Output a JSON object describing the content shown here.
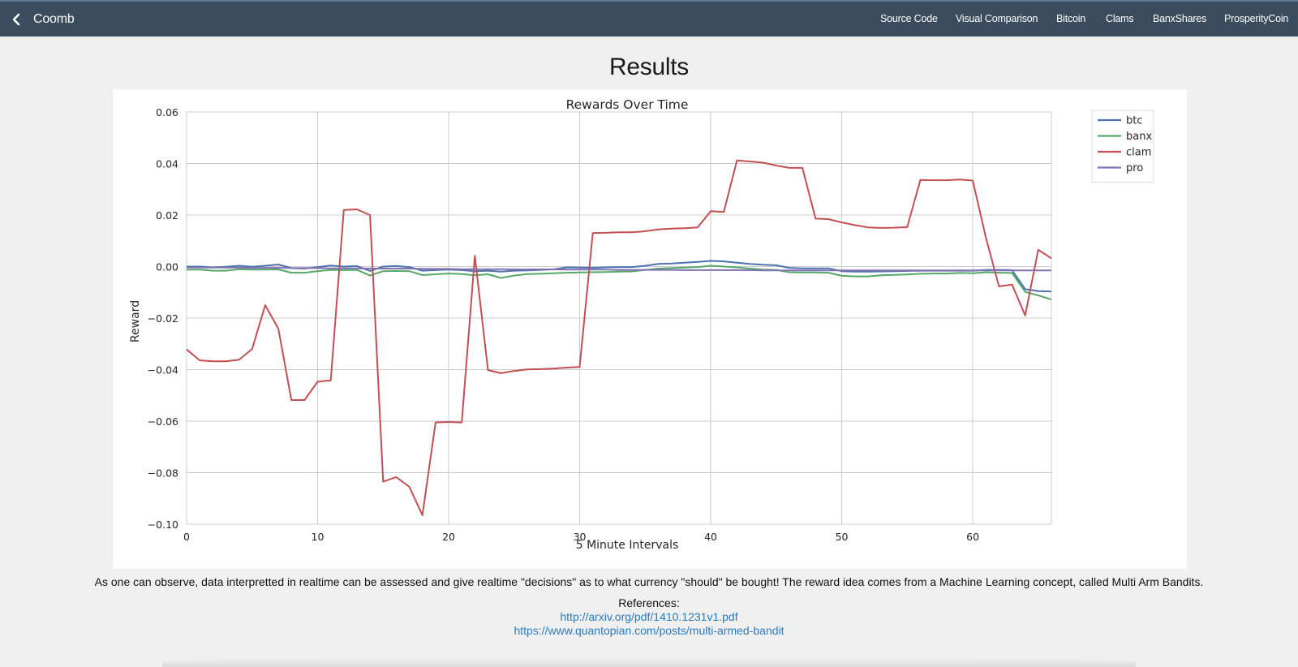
{
  "navbar": {
    "brand": "Coomb",
    "back_icon": "chevron-left-icon",
    "links": [
      "Source Code",
      "Visual Comparison",
      "Bitcoin",
      "Clams",
      "BanxShares",
      "ProsperityCoin"
    ]
  },
  "page": {
    "title": "Results",
    "caption": "As one can observe, data interpretted in realtime can be assessed and give realtime \"decisions\" as to what currency \"should\" be bought! The reward idea comes from a Machine Learning concept, called Multi Arm Bandits.",
    "references_label": "References:",
    "references": [
      "http://arxiv.org/pdf/1410.1231v1.pdf",
      "https://www.quantopian.com/posts/multi-armed-bandit"
    ]
  },
  "chart_data": {
    "type": "line",
    "title": "Rewards Over Time",
    "xlabel": "5 Minute Intervals",
    "ylabel": "Reward",
    "xlim": [
      0,
      66
    ],
    "ylim": [
      -0.1,
      0.06
    ],
    "x_ticks": [
      0,
      10,
      20,
      30,
      40,
      50,
      60
    ],
    "x_tick_labels": [
      "0",
      "10",
      "20",
      "30",
      "40",
      "50",
      "60"
    ],
    "y_ticks": [
      0.06,
      0.04,
      0.02,
      0.0,
      -0.02,
      -0.04,
      -0.06,
      -0.08,
      -0.1
    ],
    "y_tick_labels": [
      "0.06",
      "0.04",
      "0.02",
      "0.00",
      "−0.02",
      "−0.04",
      "−0.06",
      "−0.08",
      "−0.10"
    ],
    "grid": true,
    "legend_position": "outside-top-right",
    "series": [
      {
        "name": "btc",
        "color": "#4c72b0",
        "values": [
          0.0,
          0.0,
          -0.0003,
          -0.0001,
          0.0003,
          -0.0001,
          0.0003,
          0.0008,
          -0.0006,
          -0.0008,
          -0.0002,
          0.0004,
          0.0,
          0.0002,
          -0.0017,
          0.0,
          0.0002,
          -0.0002,
          -0.0016,
          -0.0014,
          -0.0012,
          -0.0014,
          -0.0018,
          -0.0016,
          -0.002,
          -0.0016,
          -0.0015,
          -0.0013,
          -0.0011,
          -0.0003,
          -0.0004,
          -0.0005,
          -0.0003,
          -0.0002,
          -0.0002,
          0.0003,
          0.001,
          0.0012,
          0.0015,
          0.0018,
          0.0022,
          0.002,
          0.0015,
          0.001,
          0.0007,
          0.0005,
          -0.0005,
          -0.0007,
          -0.0007,
          -0.0007,
          -0.0018,
          -0.002,
          -0.002,
          -0.0019,
          -0.0018,
          -0.0017,
          -0.0016,
          -0.0016,
          -0.0016,
          -0.0016,
          -0.0016,
          -0.0013,
          -0.0013,
          -0.0014,
          -0.0088,
          -0.0095,
          -0.0097
        ]
      },
      {
        "name": "banx",
        "color": "#55a868",
        "values": [
          -0.0012,
          -0.0012,
          -0.0016,
          -0.0016,
          -0.001,
          -0.0012,
          -0.0012,
          -0.0011,
          -0.0024,
          -0.0024,
          -0.0018,
          -0.0013,
          -0.0014,
          -0.0013,
          -0.0035,
          -0.0018,
          -0.0017,
          -0.0018,
          -0.0033,
          -0.003,
          -0.0027,
          -0.0029,
          -0.0034,
          -0.003,
          -0.0044,
          -0.0035,
          -0.0029,
          -0.0028,
          -0.0026,
          -0.0024,
          -0.0023,
          -0.0022,
          -0.0021,
          -0.002,
          -0.0019,
          -0.0013,
          -0.0008,
          -0.0006,
          -0.0004,
          -0.0002,
          0.0003,
          0.0,
          -0.0003,
          -0.0008,
          -0.0012,
          -0.0013,
          -0.0022,
          -0.0023,
          -0.0023,
          -0.0024,
          -0.0036,
          -0.0038,
          -0.0038,
          -0.0034,
          -0.0032,
          -0.0031,
          -0.0028,
          -0.0027,
          -0.0027,
          -0.0025,
          -0.0026,
          -0.0022,
          -0.0024,
          -0.0025,
          -0.0098,
          -0.0112,
          -0.0128
        ]
      },
      {
        "name": "clam",
        "color": "#c44e52",
        "values": [
          -0.0322,
          -0.0364,
          -0.0368,
          -0.0368,
          -0.0362,
          -0.032,
          -0.015,
          -0.0241,
          -0.0518,
          -0.0518,
          -0.0447,
          -0.0442,
          0.022,
          0.0222,
          0.02,
          -0.0835,
          -0.0817,
          -0.0855,
          -0.0965,
          -0.0605,
          -0.0603,
          -0.0605,
          0.0042,
          -0.0402,
          -0.0414,
          -0.0405,
          -0.0399,
          -0.0398,
          -0.0396,
          -0.0392,
          -0.039,
          0.013,
          0.0131,
          0.0133,
          0.0133,
          0.0137,
          0.0144,
          0.0147,
          0.0149,
          0.0152,
          0.0215,
          0.0212,
          0.0412,
          0.0408,
          0.0403,
          0.0392,
          0.0383,
          0.0383,
          0.0186,
          0.0184,
          0.0171,
          0.0161,
          0.0152,
          0.015,
          0.0151,
          0.0153,
          0.0336,
          0.0335,
          0.0335,
          0.0338,
          0.0334,
          0.0113,
          -0.0077,
          -0.007,
          -0.019,
          0.0065,
          0.0032
        ]
      },
      {
        "name": "pro",
        "color": "#8172b2",
        "values": [
          -0.0003,
          -0.0004,
          -0.0004,
          -0.0004,
          -0.0004,
          -0.0005,
          -0.0005,
          -0.0005,
          -0.0006,
          -0.0006,
          -0.0006,
          -0.0007,
          -0.0007,
          -0.0007,
          -0.0008,
          -0.0008,
          -0.0008,
          -0.0008,
          -0.0009,
          -0.0009,
          -0.0009,
          -0.001,
          -0.001,
          -0.001,
          -0.001,
          -0.0011,
          -0.0011,
          -0.0011,
          -0.0011,
          -0.0012,
          -0.0012,
          -0.0012,
          -0.0012,
          -0.0013,
          -0.0013,
          -0.0013,
          -0.0013,
          -0.0013,
          -0.0014,
          -0.0014,
          -0.0014,
          -0.0014,
          -0.0014,
          -0.0014,
          -0.0015,
          -0.0015,
          -0.0015,
          -0.0015,
          -0.0015,
          -0.0015,
          -0.0015,
          -0.0015,
          -0.0015,
          -0.0015,
          -0.0015,
          -0.0015,
          -0.0015,
          -0.0015,
          -0.0015,
          -0.0015,
          -0.0015,
          -0.0015,
          -0.0015,
          -0.0015,
          -0.0015,
          -0.0015,
          -0.0015
        ]
      }
    ]
  }
}
